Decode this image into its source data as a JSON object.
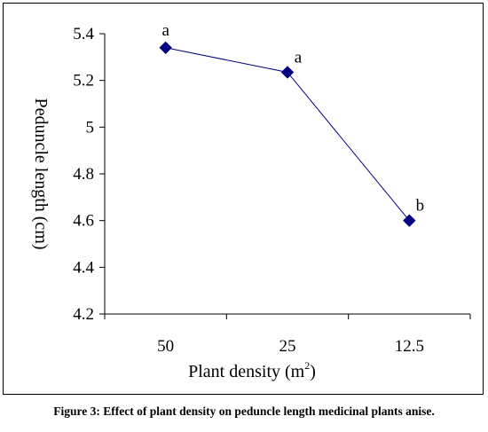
{
  "chart_data": {
    "type": "line",
    "categories": [
      "50",
      "25",
      "12.5"
    ],
    "series": [
      {
        "values": [
          5.34,
          5.235,
          4.6
        ],
        "point_labels": [
          "a",
          "a",
          "b"
        ],
        "color": "#000080"
      }
    ],
    "xlabel": {
      "text": "Plant density (m",
      "sup": "2",
      "suffix": ")"
    },
    "ylabel": "Peduncle length (cm)",
    "ylim": [
      4.2,
      5.4
    ],
    "yticks": [
      "4.2",
      "4.4",
      "4.6",
      "4.8",
      "5",
      "5.2",
      "5.4"
    ],
    "grid": false,
    "legend": "none"
  },
  "caption": "Figure 3: Effect of plant density on peduncle length medicinal plants anise."
}
